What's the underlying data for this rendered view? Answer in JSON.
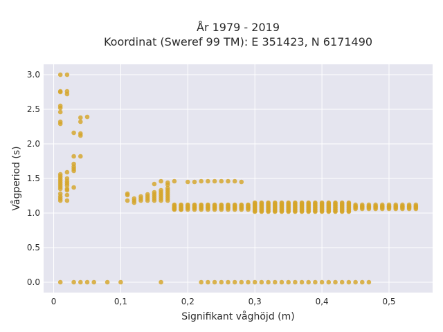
{
  "chart_data": {
    "type": "scatter",
    "title_line1": "År 1979 - 2019",
    "title_line2": "Koordinat (Sweref 99 TM): E 351423, N 6171490",
    "xlabel": "Signifikant våghöjd (m)",
    "ylabel": "Vågperiod (s)",
    "xlim": [
      -0.015,
      0.565
    ],
    "ylim": [
      -0.15,
      3.15
    ],
    "x_ticks": [
      {
        "value": 0,
        "label": "0"
      },
      {
        "value": 0.1,
        "label": "0,1"
      },
      {
        "value": 0.2,
        "label": "0,2"
      },
      {
        "value": 0.3,
        "label": "0,3"
      },
      {
        "value": 0.4,
        "label": "0,4"
      },
      {
        "value": 0.5,
        "label": "0,5"
      }
    ],
    "y_ticks": [
      {
        "value": 0,
        "label": "0.0"
      },
      {
        "value": 0.5,
        "label": "0.5"
      },
      {
        "value": 1,
        "label": "1.0"
      },
      {
        "value": 1.5,
        "label": "1.5"
      },
      {
        "value": 2,
        "label": "2.0"
      },
      {
        "value": 2.5,
        "label": "2.5"
      },
      {
        "value": 3,
        "label": "3.0"
      }
    ],
    "grid": true,
    "colors": {
      "marker": "#d4a52a",
      "plot_bg": "#e5e5ef",
      "grid": "#ffffff"
    },
    "series": [
      {
        "points": [
          [
            0.01,
            0
          ],
          [
            0.08,
            0
          ],
          [
            0.1,
            0
          ],
          [
            0.16,
            0
          ],
          [
            0.01,
            3.0
          ],
          [
            0.02,
            3.0
          ],
          [
            0.01,
            2.76
          ],
          [
            0.01,
            2.75
          ],
          [
            0.02,
            2.76
          ],
          [
            0.02,
            2.72
          ],
          [
            0.01,
            2.55
          ],
          [
            0.01,
            2.52
          ],
          [
            0.01,
            2.46
          ],
          [
            0.04,
            2.38
          ],
          [
            0.05,
            2.39
          ],
          [
            0.01,
            2.32
          ],
          [
            0.01,
            2.29
          ],
          [
            0.04,
            2.32
          ],
          [
            0.03,
            2.16
          ],
          [
            0.04,
            2.15
          ],
          [
            0.04,
            2.12
          ],
          [
            0.03,
            1.82
          ],
          [
            0.04,
            1.82
          ],
          [
            0.03,
            1.71
          ],
          [
            0.03,
            1.67
          ],
          [
            0.03,
            1.64
          ],
          [
            0.03,
            1.61
          ],
          [
            0.02,
            1.59
          ],
          [
            0.01,
            1.56
          ],
          [
            0.01,
            1.53
          ],
          [
            0.01,
            1.5
          ],
          [
            0.01,
            1.47
          ],
          [
            0.01,
            1.44
          ],
          [
            0.01,
            1.41
          ],
          [
            0.01,
            1.38
          ],
          [
            0.01,
            1.35
          ],
          [
            0.02,
            1.5
          ],
          [
            0.02,
            1.46
          ],
          [
            0.02,
            1.43
          ],
          [
            0.02,
            1.4
          ],
          [
            0.02,
            1.35
          ],
          [
            0.02,
            1.33
          ],
          [
            0.03,
            1.37
          ],
          [
            0.01,
            1.28
          ],
          [
            0.01,
            1.24
          ],
          [
            0.01,
            1.21
          ],
          [
            0.01,
            1.18
          ],
          [
            0.02,
            1.26
          ],
          [
            0.02,
            1.18
          ],
          [
            0.15,
            1.42
          ],
          [
            0.16,
            1.46
          ],
          [
            0.17,
            1.44
          ],
          [
            0.17,
            1.41
          ],
          [
            0.18,
            1.46
          ],
          [
            0.2,
            1.45
          ],
          [
            0.21,
            1.45
          ],
          [
            0.22,
            1.46
          ],
          [
            0.23,
            1.46
          ],
          [
            0.24,
            1.46
          ],
          [
            0.25,
            1.46
          ],
          [
            0.26,
            1.46
          ],
          [
            0.27,
            1.46
          ],
          [
            0.28,
            1.45
          ]
        ]
      }
    ]
  }
}
